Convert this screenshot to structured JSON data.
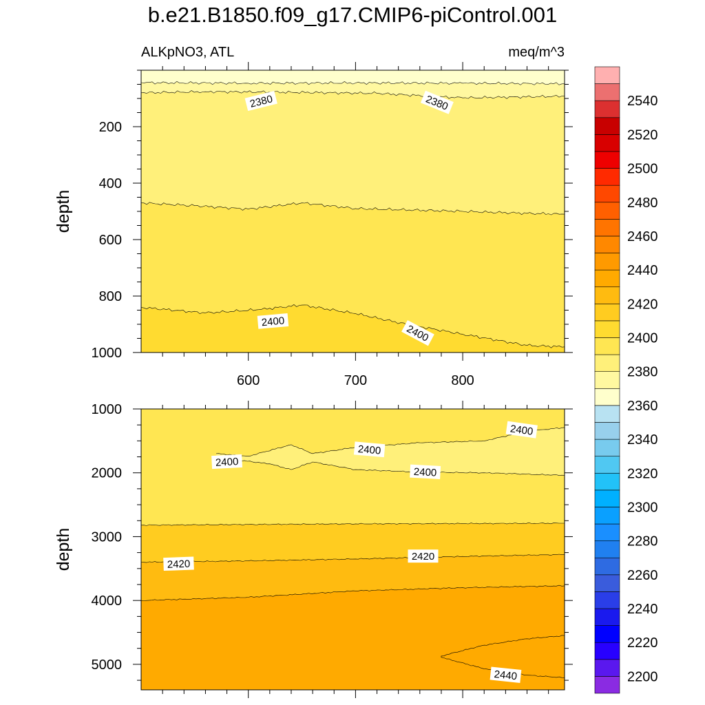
{
  "chart_data": {
    "type": "contour",
    "title": "b.e21.B1850.f09_g17.CMIP6-piControl.001",
    "colorbar": {
      "levels": [
        2200,
        2210,
        2220,
        2230,
        2240,
        2250,
        2260,
        2270,
        2280,
        2290,
        2300,
        2310,
        2320,
        2330,
        2340,
        2350,
        2360,
        2370,
        2380,
        2390,
        2400,
        2410,
        2420,
        2430,
        2440,
        2450,
        2460,
        2470,
        2480,
        2490,
        2500,
        2510,
        2520,
        2530,
        2540,
        2550
      ],
      "tick_labels": [
        "2540",
        "2520",
        "2500",
        "2480",
        "2460",
        "2440",
        "2420",
        "2400",
        "2380",
        "2360",
        "2340",
        "2320",
        "2300",
        "2280",
        "2260",
        "2240",
        "2220",
        "2200"
      ],
      "colors": [
        "#8a2be2",
        "#5a18ee",
        "#2800ff",
        "#0000ff",
        "#1a1aee",
        "#2a3ee8",
        "#3a5cdc",
        "#2e6be2",
        "#2080f0",
        "#1a8fff",
        "#0aa0ff",
        "#00b0ff",
        "#22c2f8",
        "#50c8f2",
        "#78cbee",
        "#98d0ec",
        "#b8e2f2",
        "#ffffcc",
        "#fff8a0",
        "#fff07a",
        "#ffe652",
        "#ffdb30",
        "#ffcc20",
        "#ffbb10",
        "#ffaa00",
        "#ff9a00",
        "#ff8800",
        "#ff7400",
        "#ff6000",
        "#ff4800",
        "#ff2a00",
        "#ee0000",
        "#d80000",
        "#c80000",
        "#dc3030",
        "#ec7070",
        "#ffb0b0"
      ]
    },
    "panels": [
      {
        "name": "upper",
        "left_string": "ALKpNO3, ATL",
        "right_string": "meq/m^3",
        "ylabel": "depth",
        "xlim": [
          500,
          895
        ],
        "ylim": [
          0,
          1000
        ],
        "y_inverted": true,
        "x_ticks": [
          600,
          700,
          800
        ],
        "x_tick_labels": [
          "600",
          "700",
          "800"
        ],
        "y_ticks": [
          200,
          400,
          600,
          800,
          1000
        ],
        "y_tick_labels": [
          "200",
          "400",
          "600",
          "800",
          "1000"
        ],
        "contours": [
          {
            "level": 2370,
            "x": [
              500,
              600,
              700,
              800,
              895
            ],
            "depth": [
              44,
              46,
              45,
              46,
              48
            ]
          },
          {
            "level": 2380,
            "x": [
              500,
              560,
              640,
              720,
              800,
              895
            ],
            "depth": [
              80,
              76,
              78,
              82,
              98,
              92
            ]
          },
          {
            "level": 2390,
            "x": [
              500,
              550,
              600,
              650,
              700,
              750,
              800,
              850,
              895
            ],
            "depth": [
              470,
              480,
              492,
              470,
              490,
              495,
              500,
              506,
              510
            ]
          },
          {
            "level": 2400,
            "x": [
              500,
              560,
              610,
              650,
              700,
              750,
              800,
              860,
              895
            ],
            "depth": [
              840,
              860,
              848,
              832,
              862,
              902,
              935,
              975,
              980
            ]
          }
        ],
        "contour_labels": [
          {
            "text": "2380",
            "x": 612,
            "depth": 110,
            "angle": -14
          },
          {
            "text": "2380",
            "x": 776,
            "depth": 115,
            "angle": 22
          },
          {
            "text": "2400",
            "x": 623,
            "depth": 890,
            "angle": -5
          },
          {
            "text": "2400",
            "x": 758,
            "depth": 932,
            "angle": 28
          }
        ]
      },
      {
        "name": "lower",
        "ylabel": "depth",
        "xlim": [
          500,
          895
        ],
        "ylim": [
          1000,
          5400
        ],
        "y_inverted": true,
        "y_ticks": [
          1000,
          2000,
          3000,
          4000,
          5000
        ],
        "y_tick_labels": [
          "1000",
          "2000",
          "3000",
          "4000",
          "5000"
        ],
        "contours": [
          {
            "level": 2400,
            "x": [
              570,
              600,
              640,
              660,
              700,
              760,
              820,
              860,
              895
            ],
            "depth": [
              1700,
              1740,
              1560,
              1700,
              1600,
              1530,
              1500,
              1350,
              1290
            ]
          },
          {
            "level": 2400,
            "x": [
              570,
              620,
              640,
              660,
              700,
              760,
              820,
              895
            ],
            "depth": [
              1760,
              1860,
              1950,
              1830,
              1950,
              1990,
              2000,
              2040
            ]
          },
          {
            "level": 2410,
            "x": [
              500,
              700,
              895
            ],
            "depth": [
              2820,
              2800,
              2790
            ]
          },
          {
            "level": 2420,
            "x": [
              500,
              600,
              700,
              800,
              895
            ],
            "depth": [
              3400,
              3380,
              3350,
              3310,
              3280
            ]
          },
          {
            "level": 2430,
            "x": [
              500,
              600,
              700,
              800,
              895
            ],
            "depth": [
              4000,
              3950,
              3850,
              3800,
              3770
            ]
          },
          {
            "level": 2440,
            "x": [
              780,
              820,
              860,
              895,
              895,
              860,
              820,
              780
            ],
            "depth": [
              4870,
              4700,
              4600,
              4550,
              5210,
              5170,
              5070,
              4890
            ],
            "closed": true
          }
        ],
        "contour_labels": [
          {
            "text": "2400",
            "x": 713,
            "depth": 1640,
            "angle": 5
          },
          {
            "text": "2400",
            "x": 580,
            "depth": 1830,
            "angle": -3
          },
          {
            "text": "2400",
            "x": 765,
            "depth": 1990,
            "angle": 3
          },
          {
            "text": "2400",
            "x": 855,
            "depth": 1330,
            "angle": 8
          },
          {
            "text": "2420",
            "x": 535,
            "depth": 3430,
            "angle": -2
          },
          {
            "text": "2420",
            "x": 763,
            "depth": 3310,
            "angle": 0
          },
          {
            "text": "2440",
            "x": 840,
            "depth": 5170,
            "angle": 6
          }
        ]
      }
    ]
  }
}
